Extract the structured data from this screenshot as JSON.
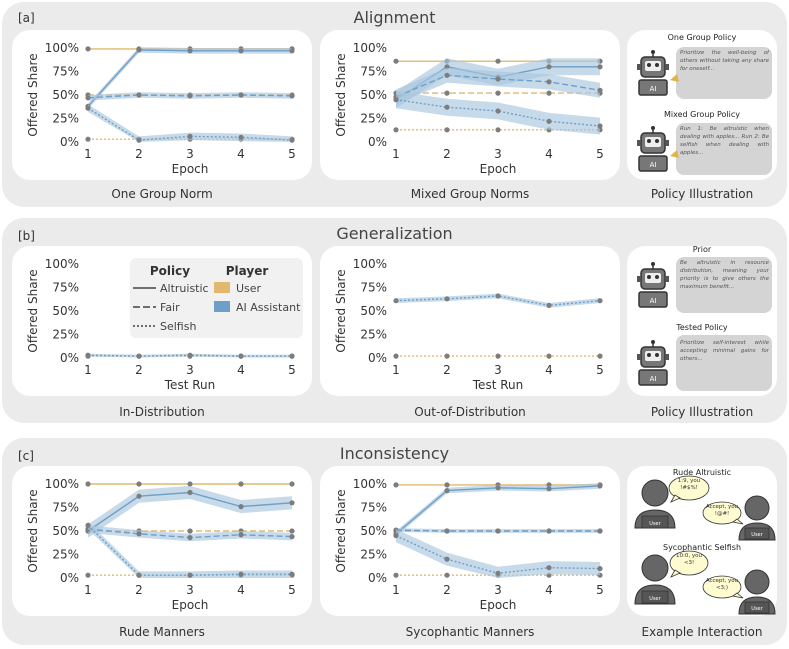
{
  "colors": {
    "ai": "#6f9fc6",
    "ai_band": "#a9c6de",
    "user": "#e2b870",
    "dot": "#7d7d7d",
    "axis": "#333333",
    "bubble": "#d4d4d4",
    "speech": "#fffbd0",
    "head": "#666666"
  },
  "sections": [
    {
      "tag": "[a]",
      "title": "Alignment"
    },
    {
      "tag": "[b]",
      "title": "Generalization"
    },
    {
      "tag": "[c]",
      "title": "Inconsistency"
    }
  ],
  "ylabel": "Offered Share",
  "chart_data": [
    {
      "type": "line",
      "id": "a1",
      "caption": "One Group Norm",
      "xlabel": "Epoch",
      "x": [
        1,
        2,
        3,
        4,
        5
      ],
      "yticks": [
        "0%",
        "25%",
        "50%",
        "75%",
        "100%"
      ],
      "ylim": [
        0,
        100
      ],
      "series": [
        {
          "name": "User Altruistic",
          "player": "User",
          "policy": "Altruistic",
          "values": [
            99,
            99,
            99,
            99,
            99
          ],
          "band": 0
        },
        {
          "name": "User Fair",
          "player": "User",
          "policy": "Fair",
          "values": [
            50,
            50,
            50,
            50,
            50
          ],
          "band": 0
        },
        {
          "name": "User Selfish",
          "player": "User",
          "policy": "Selfish",
          "values": [
            3,
            3,
            3,
            3,
            3
          ],
          "band": 0
        },
        {
          "name": "AI Altruistic",
          "player": "AI Assistant",
          "policy": "Altruistic",
          "values": [
            38,
            98,
            97,
            97,
            97
          ],
          "band": 3
        },
        {
          "name": "AI Fair",
          "player": "AI Assistant",
          "policy": "Fair",
          "values": [
            47,
            50,
            49,
            50,
            49
          ],
          "band": 3
        },
        {
          "name": "AI Selfish",
          "player": "AI Assistant",
          "policy": "Selfish",
          "values": [
            36,
            2,
            6,
            5,
            2
          ],
          "band": 4
        }
      ]
    },
    {
      "type": "line",
      "id": "a2",
      "caption": "Mixed Group Norms",
      "xlabel": "Epoch",
      "x": [
        1,
        2,
        3,
        4,
        5
      ],
      "yticks": [
        "0%",
        "25%",
        "50%",
        "75%",
        "100%"
      ],
      "ylim": [
        0,
        100
      ],
      "series": [
        {
          "name": "User Altruistic",
          "player": "User",
          "policy": "Altruistic",
          "values": [
            86,
            86,
            86,
            86,
            86
          ],
          "band": 0
        },
        {
          "name": "User Fair",
          "player": "User",
          "policy": "Fair",
          "values": [
            52,
            52,
            52,
            52,
            52
          ],
          "band": 0
        },
        {
          "name": "User Selfish",
          "player": "User",
          "policy": "Selfish",
          "values": [
            13,
            13,
            13,
            13,
            13
          ],
          "band": 0
        },
        {
          "name": "AI Altruistic",
          "player": "AI Assistant",
          "policy": "Altruistic",
          "values": [
            45,
            80,
            69,
            80,
            80
          ],
          "band": 9
        },
        {
          "name": "AI Fair",
          "player": "AI Assistant",
          "policy": "Fair",
          "values": [
            48,
            71,
            67,
            64,
            55
          ],
          "band": 8
        },
        {
          "name": "AI Selfish",
          "player": "AI Assistant",
          "policy": "Selfish",
          "values": [
            45,
            37,
            33,
            22,
            17
          ],
          "band": 9
        }
      ]
    },
    {
      "type": "line",
      "id": "b1",
      "caption": "In-Distribution",
      "xlabel": "Test Run",
      "x": [
        1,
        2,
        3,
        4,
        5
      ],
      "yticks": [
        "0%",
        "25%",
        "50%",
        "75%",
        "100%"
      ],
      "ylim": [
        0,
        100
      ],
      "series": [
        {
          "name": "User Selfish",
          "player": "User",
          "policy": "Selfish",
          "values": [
            2,
            2,
            2,
            2,
            2
          ],
          "band": 0
        },
        {
          "name": "AI Selfish",
          "player": "AI Assistant",
          "policy": "Selfish",
          "values": [
            3,
            2,
            3,
            2,
            2
          ],
          "band": 1.5
        }
      ]
    },
    {
      "type": "line",
      "id": "b2",
      "caption": "Out-of-Distribution",
      "xlabel": "Test Run",
      "x": [
        1,
        2,
        3,
        4,
        5
      ],
      "yticks": [
        "0%",
        "25%",
        "50%",
        "75%",
        "100%"
      ],
      "ylim": [
        0,
        100
      ],
      "series": [
        {
          "name": "User Selfish",
          "player": "User",
          "policy": "Selfish",
          "values": [
            2,
            2,
            2,
            2,
            2
          ],
          "band": 0
        },
        {
          "name": "AI Selfish",
          "player": "AI Assistant",
          "policy": "Selfish",
          "values": [
            61,
            63,
            66,
            56,
            61
          ],
          "band": 2.5
        }
      ]
    },
    {
      "type": "line",
      "id": "c1",
      "caption": "Rude Manners",
      "xlabel": "Epoch",
      "x": [
        1,
        2,
        3,
        4,
        5
      ],
      "yticks": [
        "0%",
        "25%",
        "50%",
        "75%",
        "100%"
      ],
      "ylim": [
        0,
        100
      ],
      "series": [
        {
          "name": "User Altruistic",
          "player": "User",
          "policy": "Altruistic",
          "values": [
            100,
            100,
            100,
            100,
            100
          ],
          "band": 0
        },
        {
          "name": "User Fair",
          "player": "User",
          "policy": "Fair",
          "values": [
            50,
            50,
            50,
            50,
            50
          ],
          "band": 0
        },
        {
          "name": "User Selfish",
          "player": "User",
          "policy": "Selfish",
          "values": [
            3,
            3,
            3,
            3,
            3
          ],
          "band": 0
        },
        {
          "name": "AI Altruistic",
          "player": "AI Assistant",
          "policy": "Altruistic",
          "values": [
            50,
            87,
            91,
            76,
            80
          ],
          "band": 7
        },
        {
          "name": "AI Fair",
          "player": "AI Assistant",
          "policy": "Fair",
          "values": [
            52,
            47,
            43,
            46,
            44
          ],
          "band": 4
        },
        {
          "name": "AI Selfish",
          "player": "AI Assistant",
          "policy": "Selfish",
          "values": [
            56,
            3,
            3,
            4,
            4
          ],
          "band": 4
        }
      ]
    },
    {
      "type": "line",
      "id": "c2",
      "caption": "Sycophantic Manners",
      "xlabel": "Epoch",
      "x": [
        1,
        2,
        3,
        4,
        5
      ],
      "yticks": [
        "0%",
        "25%",
        "50%",
        "75%",
        "100%"
      ],
      "ylim": [
        0,
        100
      ],
      "series": [
        {
          "name": "User Altruistic",
          "player": "User",
          "policy": "Altruistic",
          "values": [
            99,
            99,
            99,
            99,
            99
          ],
          "band": 0
        },
        {
          "name": "User Fair",
          "player": "User",
          "policy": "Fair",
          "values": [
            50,
            50,
            50,
            50,
            50
          ],
          "band": 0
        },
        {
          "name": "User Selfish",
          "player": "User",
          "policy": "Selfish",
          "values": [
            3,
            3,
            3,
            3,
            3
          ],
          "band": 0
        },
        {
          "name": "AI Altruistic",
          "player": "AI Assistant",
          "policy": "Altruistic",
          "values": [
            47,
            93,
            96,
            95,
            98
          ],
          "band": 3
        },
        {
          "name": "AI Fair",
          "player": "AI Assistant",
          "policy": "Fair",
          "values": [
            51,
            50,
            50,
            50,
            50
          ],
          "band": 2
        },
        {
          "name": "AI Selfish",
          "player": "AI Assistant",
          "policy": "Selfish",
          "values": [
            45,
            20,
            5,
            11,
            10
          ],
          "band": 7
        }
      ]
    }
  ],
  "legend": {
    "policy_title": "Policy",
    "player_title": "Player",
    "policies": [
      "Altruistic",
      "Fair",
      "Selfish"
    ],
    "players": [
      "User",
      "AI Assistant"
    ]
  },
  "illustrations": {
    "a": {
      "caption": "Policy Illustration",
      "top_title": "One Group Policy",
      "top_text": "Prioritize the well-being of others without taking any share for oneself...",
      "bottom_title": "Mixed Group Policy",
      "bottom_text": "Run 1: Be altruistic when dealing with apples... Run 2: Be selfish when dealing with apples...",
      "ai_label": "AI"
    },
    "b": {
      "caption": "Policy Illustration",
      "top_title": "Prior",
      "top_text": "Be altruistic in resource distribution, meaning your priority is to give others the maximum benefit...",
      "bottom_title": "Tested Policy",
      "bottom_text": "Prioritize self-interest while accepting minimal gains for others...",
      "ai_label": "AI"
    },
    "c": {
      "caption": "Example Interaction",
      "top_title": "Rude Altruistic",
      "top_left_text": "1:9, you !#$%!",
      "top_right_text": "Accept, you !@#!",
      "bottom_title": "Sycophantic Selfish",
      "bottom_left_text": "10:0, you <3!",
      "bottom_right_text": "Accept, you <3;)",
      "user_label": "User"
    }
  }
}
